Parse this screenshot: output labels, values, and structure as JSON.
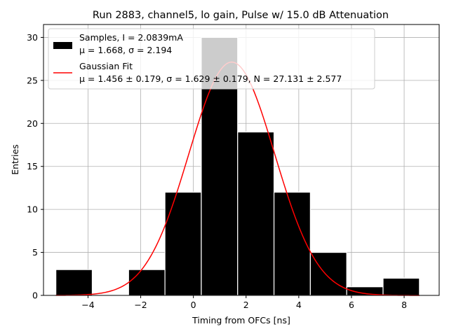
{
  "chart_data": {
    "type": "bar",
    "title": "Run 2883, channel5, lo gain, Pulse w/ 15.0 dB Attenuation",
    "xlabel": "Timing from OFCs [ns]",
    "ylabel": "Entries",
    "xlim": [
      -5.69,
      9.33
    ],
    "ylim": [
      0,
      31.5
    ],
    "xticks": [
      -4,
      -2,
      0,
      2,
      4,
      6,
      8
    ],
    "yticks": [
      0,
      5,
      10,
      15,
      20,
      25,
      30
    ],
    "grid": true,
    "bin_edges": [
      -5.22,
      -3.84,
      -2.46,
      -1.08,
      0.3,
      1.68,
      3.06,
      4.44,
      5.82,
      7.2,
      8.58
    ],
    "counts": [
      3,
      0,
      3,
      12,
      30,
      19,
      12,
      5,
      1,
      2
    ],
    "bar_color": "#000000",
    "fit": {
      "mu": 1.456,
      "sigma": 1.629,
      "N": 27.131,
      "range": [
        -5.22,
        8.58
      ],
      "color": "#ff0000"
    },
    "legend": {
      "position": "top-left",
      "entries": [
        {
          "line1": "Samples, I = 2.0839mA",
          "line2": "μ = 1.668, σ = 2.194"
        },
        {
          "line1": "Gaussian Fit",
          "line2": "μ = 1.456 ± 0.179, σ = 1.629 ± 0.179, N = 27.131 ± 2.577"
        }
      ]
    }
  }
}
